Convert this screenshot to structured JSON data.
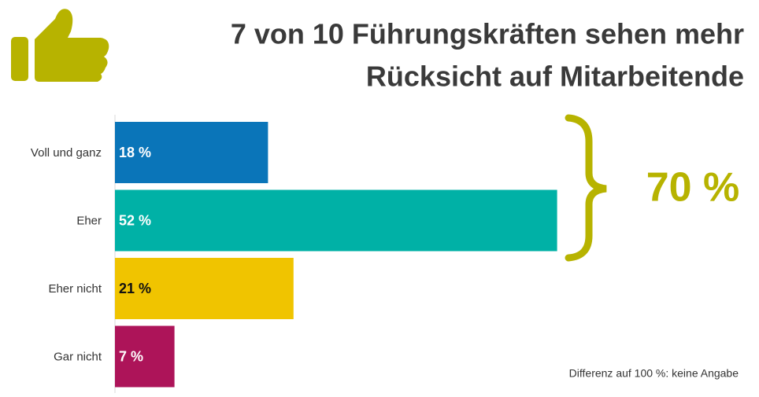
{
  "chart_data": {
    "type": "bar",
    "orientation": "horizontal",
    "title": [
      "7 von 10 Führungskräften sehen mehr",
      "Rücksicht auf Mitarbeitende"
    ],
    "categories": [
      "Voll und ganz",
      "Eher",
      "Eher nicht",
      "Gar nicht"
    ],
    "values": [
      18,
      52,
      21,
      7
    ],
    "value_labels": [
      "18 %",
      "52 %",
      "21 %",
      "7 %"
    ],
    "colors": [
      "#0a75b9",
      "#00b1a6",
      "#f0c400",
      "#ad1459"
    ],
    "label_colors": [
      "#ffffff",
      "#ffffff",
      "#111111",
      "#ffffff"
    ],
    "xlim": [
      0,
      60
    ],
    "annotation": "70 %",
    "annotation_color": "#b7b300",
    "note": "Differenz auf 100 %: keine Angabe"
  }
}
